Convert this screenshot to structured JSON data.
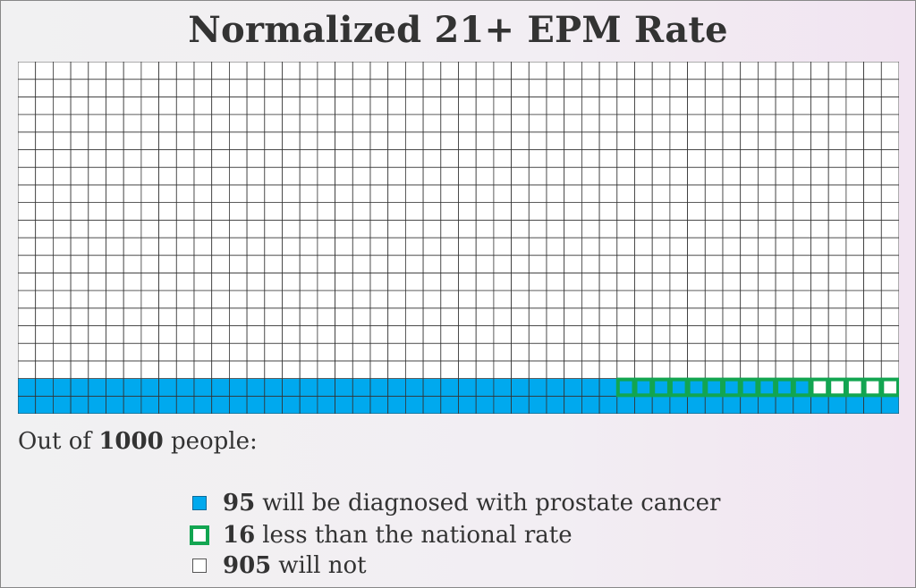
{
  "chart_data": {
    "type": "waffle",
    "title": "Normalized 21+ EPM Rate",
    "total": 1000,
    "rows": 20,
    "cols": 50,
    "series": [
      {
        "name": "will be diagnosed with prostate cancer",
        "value": 95,
        "color": "#00a9ee"
      },
      {
        "name": "less than the national rate",
        "value": 16,
        "color": "#12a551"
      },
      {
        "name": "will not",
        "value": 905,
        "color": "#ffffff"
      }
    ]
  },
  "intro": {
    "prefix": "Out of",
    "total": "1000",
    "suffix": "people:"
  },
  "legend": [
    {
      "value": "95",
      "text": "will be diagnosed with prostate cancer"
    },
    {
      "value": "16",
      "text": "less than the national rate"
    },
    {
      "value": "905",
      "text": "will not"
    }
  ],
  "colors": {
    "filled": "#00a9ee",
    "outline": "#12a551",
    "empty": "#ffffff",
    "gridline": "#333333"
  }
}
